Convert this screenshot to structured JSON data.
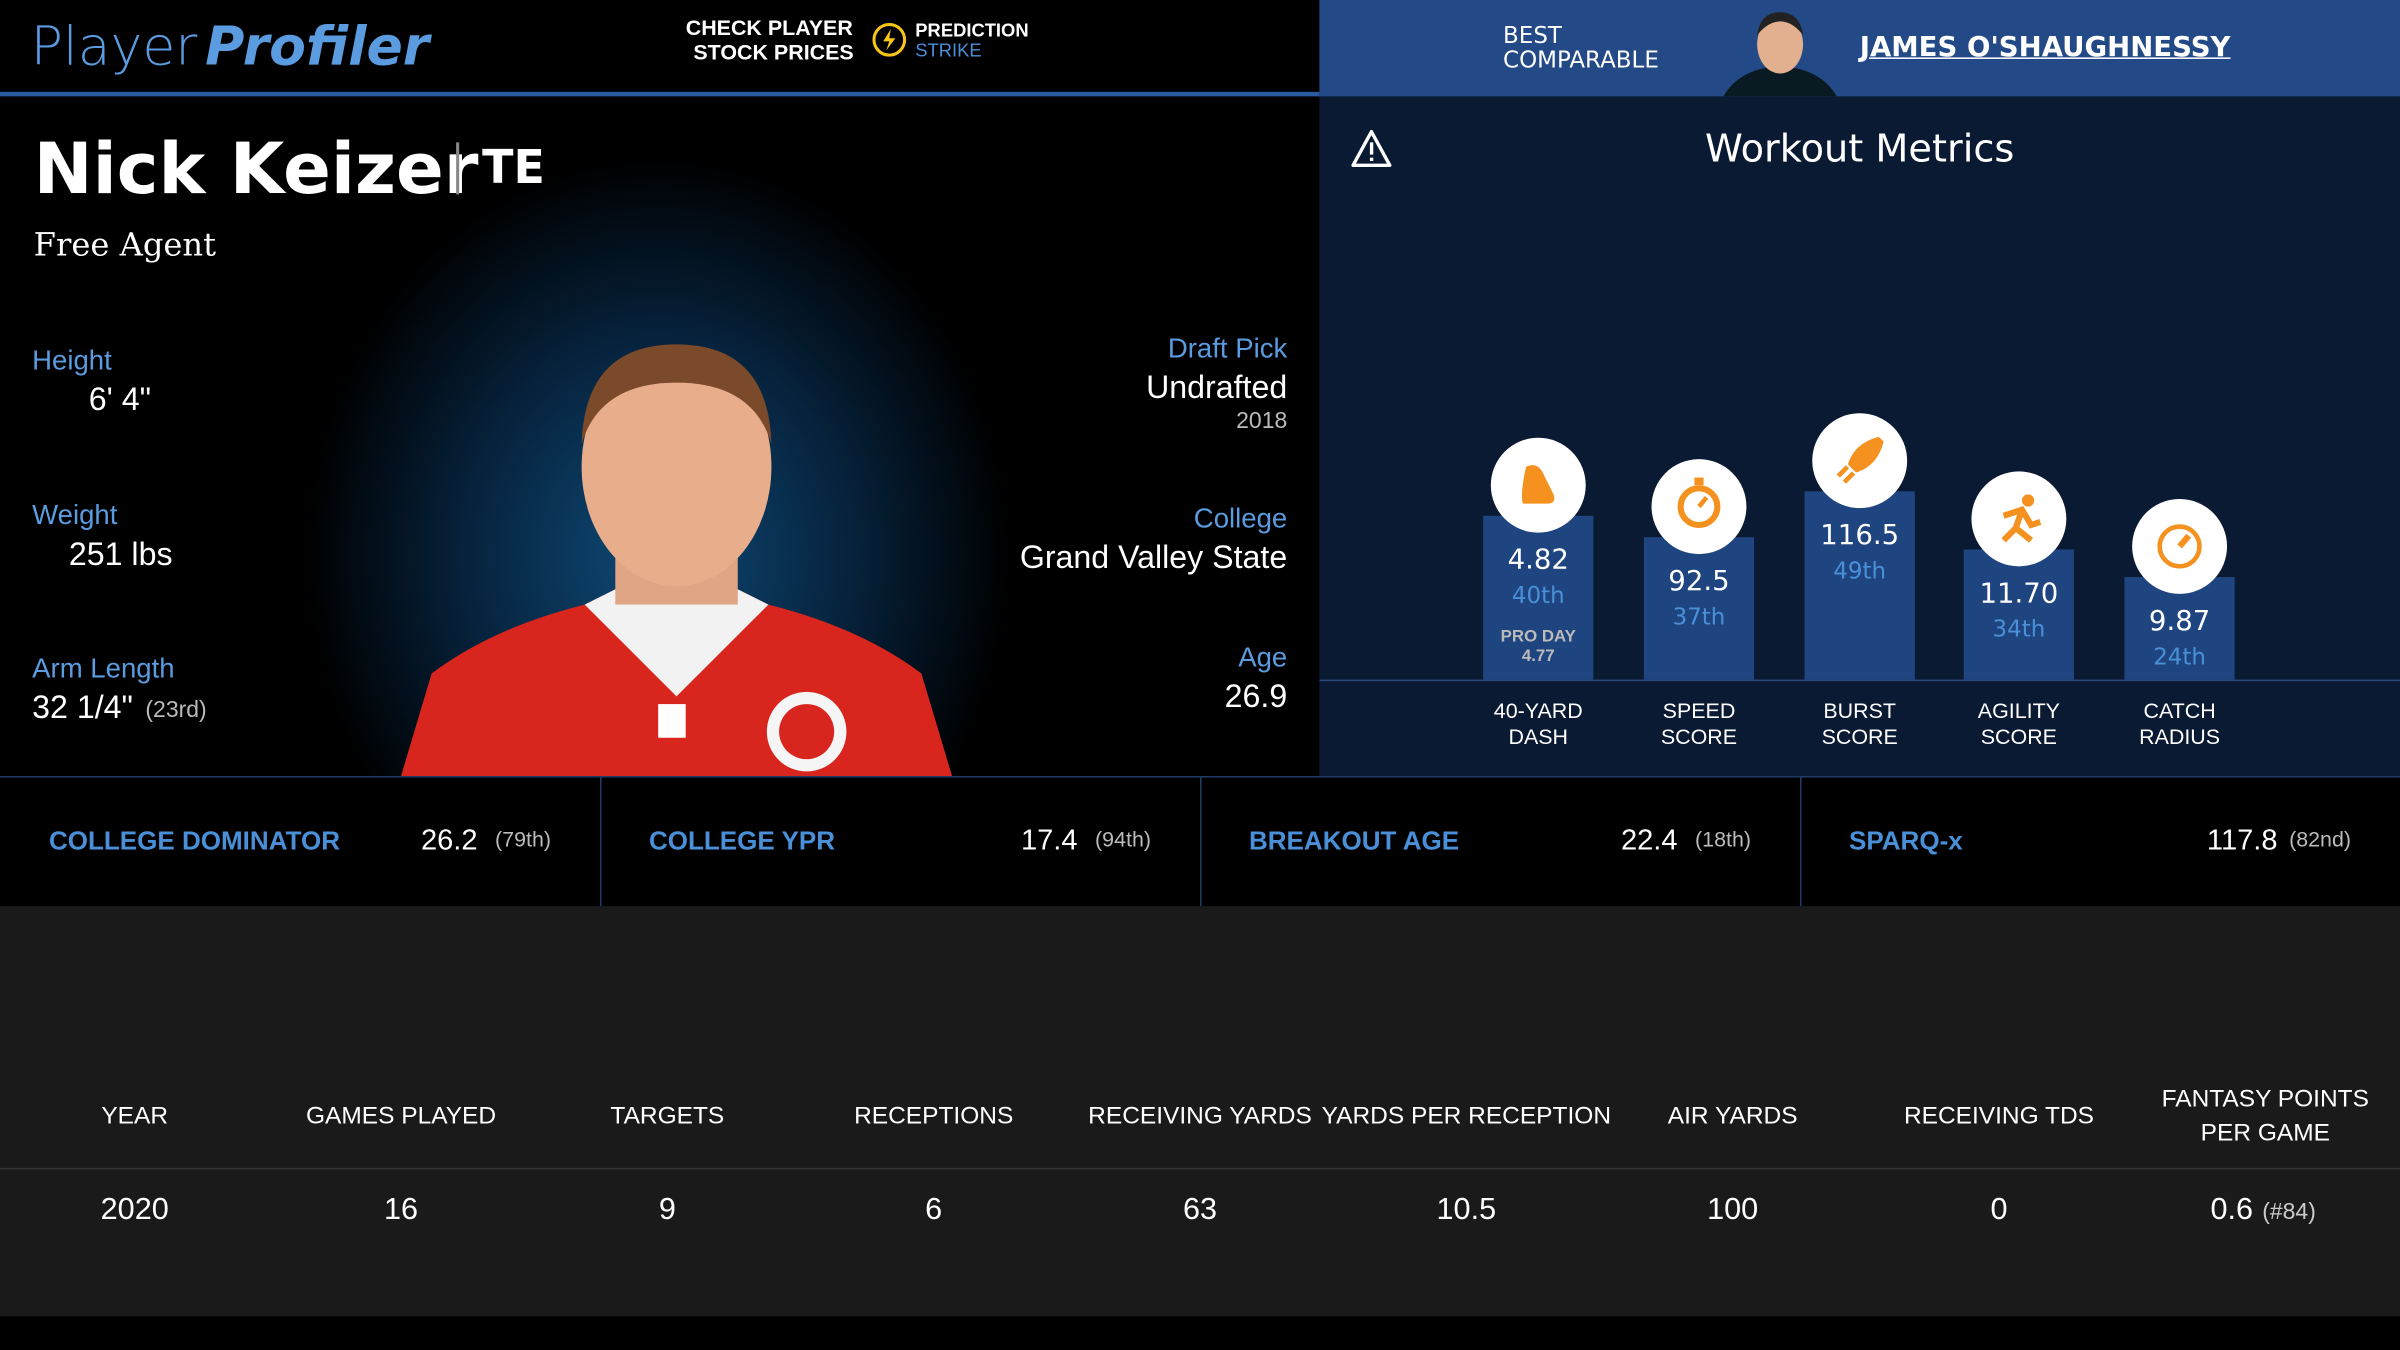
{
  "header": {
    "logo_first": "Player",
    "logo_second": "Profiler",
    "promo_line1": "CHECK PLAYER",
    "promo_line2": "STOCK PRICES",
    "promo_brand1": "PREDICTION",
    "promo_brand2": "STRIKE",
    "comparable_label1": "BEST",
    "comparable_label2": "COMPARABLE",
    "comparable_name": "JAMES O'SHAUGHNESSY"
  },
  "player": {
    "name": "Nick Keizer",
    "position": "TE",
    "status": "Free Agent"
  },
  "bio": {
    "left": [
      {
        "label": "Height",
        "value": "6' 4\""
      },
      {
        "label": "Weight",
        "value": "251 lbs"
      },
      {
        "label": "Arm Length",
        "value": "32 1/4\"",
        "rank": "(23rd)"
      }
    ],
    "right": [
      {
        "label": "Draft Pick",
        "value": "Undrafted",
        "sub": 2018
      },
      {
        "label": "College",
        "value": "Grand Valley State"
      },
      {
        "label": "Age",
        "value": 26.9
      }
    ]
  },
  "workout": {
    "title": "Workout Metrics",
    "metrics": [
      {
        "value": 4.82,
        "percentile": "40th",
        "extra_label": "PRO DAY",
        "extra_value": 4.77,
        "label1": "40-YARD",
        "label2": "DASH"
      },
      {
        "value": 92.5,
        "percentile": "37th",
        "label1": "SPEED",
        "label2": "SCORE"
      },
      {
        "value": 116.5,
        "percentile": "49th",
        "label1": "BURST",
        "label2": "SCORE"
      },
      {
        "value": "11.70",
        "percentile": "34th",
        "label1": "AGILITY",
        "label2": "SCORE"
      },
      {
        "value": 9.87,
        "percentile": "24th",
        "label1": "CATCH",
        "label2": "RADIUS"
      }
    ]
  },
  "stats": [
    {
      "label": "COLLEGE DOMINATOR",
      "value": 26.2,
      "rank": "(79th)"
    },
    {
      "label": "COLLEGE YPR",
      "value": 17.4,
      "rank": "(94th)"
    },
    {
      "label": "BREAKOUT AGE",
      "value": 22.4,
      "rank": "(18th)"
    },
    {
      "label": "SPARQ-x",
      "value": 117.8,
      "rank": "(82nd)"
    }
  ],
  "table": {
    "columns": [
      "YEAR",
      "GAMES PLAYED",
      "TARGETS",
      "RECEPTIONS",
      "RECEIVING YARDS",
      "YARDS PER RECEPTION",
      "AIR YARDS",
      "RECEIVING TDS",
      "FANTASY POINTS PER GAME"
    ],
    "rows": [
      {
        "cells": [
          2020,
          16,
          9,
          6,
          63,
          10.5,
          100,
          0,
          0.6
        ],
        "fpts_rank": "(#84)"
      }
    ]
  }
}
